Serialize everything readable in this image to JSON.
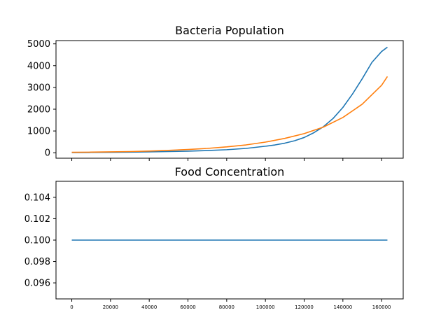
{
  "chart_data": [
    {
      "type": "line",
      "title": "Bacteria Population",
      "xlabel": "",
      "ylabel": "",
      "xlim": [
        -8150,
        171150
      ],
      "ylim": [
        -250,
        5150
      ],
      "yticks": [
        0,
        1000,
        2000,
        3000,
        4000,
        5000
      ],
      "xticks": [
        0,
        20000,
        40000,
        60000,
        80000,
        100000,
        120000,
        140000,
        160000
      ],
      "xtick_labels_visible": false,
      "grid": false,
      "legend": "none",
      "colors": [
        "#1f77b4",
        "#ff7f0e"
      ],
      "series": [
        {
          "x": [
            0,
            10000,
            20000,
            30000,
            40000,
            50000,
            60000,
            70000,
            80000,
            90000,
            100000,
            105000,
            110000,
            115000,
            120000,
            125000,
            130000,
            135000,
            140000,
            145000,
            150000,
            155000,
            160000,
            163000
          ],
          "values": [
            10,
            15,
            20,
            28,
            40,
            55,
            75,
            100,
            140,
            200,
            300,
            360,
            440,
            550,
            700,
            920,
            1200,
            1580,
            2080,
            2700,
            3400,
            4150,
            4650,
            4850
          ]
        },
        {
          "x": [
            0,
            10000,
            20000,
            30000,
            40000,
            50000,
            60000,
            70000,
            80000,
            90000,
            100000,
            110000,
            120000,
            130000,
            140000,
            150000,
            160000,
            163000
          ],
          "values": [
            20,
            28,
            40,
            55,
            78,
            110,
            150,
            200,
            270,
            360,
            490,
            660,
            880,
            1180,
            1620,
            2230,
            3100,
            3500
          ]
        }
      ]
    },
    {
      "type": "line",
      "title": "Food Concentration",
      "xlabel": "",
      "ylabel": "",
      "xlim": [
        -8150,
        171150
      ],
      "ylim": [
        0.0945,
        0.1055
      ],
      "yticks": [
        0.096,
        0.098,
        0.1,
        0.102,
        0.104
      ],
      "ytick_labels": [
        "0.096",
        "0.098",
        "0.100",
        "0.102",
        "0.104"
      ],
      "xticks": [
        0,
        20000,
        40000,
        60000,
        80000,
        100000,
        120000,
        140000,
        160000
      ],
      "xtick_labels": [
        "0",
        "20000",
        "40000",
        "60000",
        "80000",
        "100000",
        "120000",
        "140000",
        "160000"
      ],
      "grid": false,
      "legend": "none",
      "colors": [
        "#1f77b4"
      ],
      "series": [
        {
          "x": [
            0,
            163000
          ],
          "values": [
            0.1,
            0.1
          ]
        }
      ]
    }
  ]
}
